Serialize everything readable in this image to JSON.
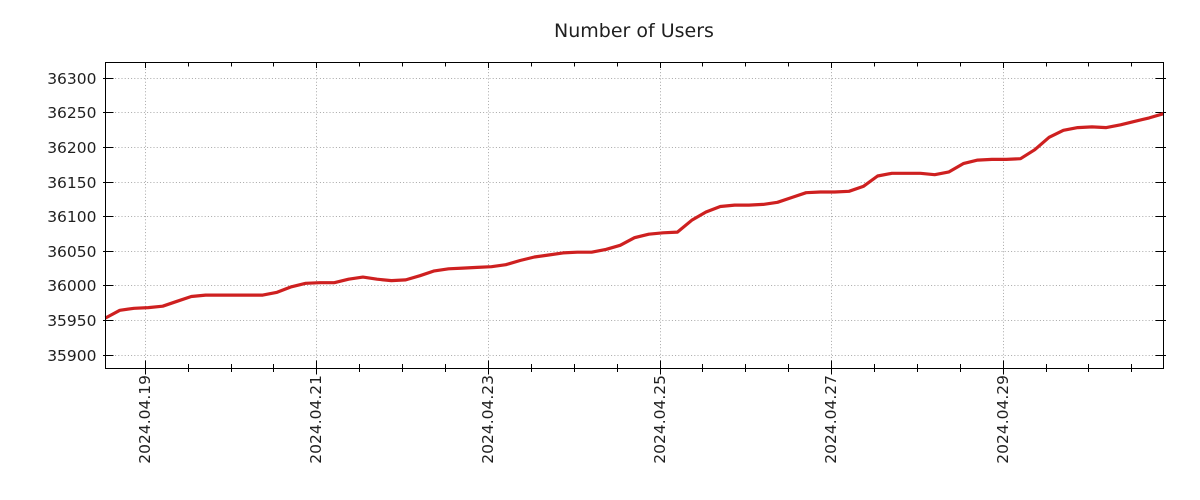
{
  "chart_data": {
    "type": "line",
    "title": "Number of Users",
    "xlabel": "",
    "ylabel": "",
    "legend": "none",
    "grid": {
      "style": "dotted",
      "color": "#a8a8a8"
    },
    "axis_color": "#000000",
    "text_color": "#1f1f1f",
    "background": "#ffffff",
    "series": [
      {
        "name": "Number of Users",
        "color": "#ce2020",
        "line_width": 3.2,
        "x_start": "2024-04-18 13:00",
        "x_end": "2024-04-30 22:00",
        "sample_interval_hours": 4,
        "values": [
          35953,
          35964,
          35967,
          35968,
          35970,
          35977,
          35984,
          35986,
          35986,
          35986,
          35986,
          35986,
          35990,
          35998,
          36003,
          36004,
          36004,
          36009,
          36012,
          36009,
          36007,
          36008,
          36014,
          36021,
          36024,
          36025,
          36026,
          36027,
          36030,
          36036,
          36041,
          36044,
          36047,
          36048,
          36048,
          36052,
          36058,
          36069,
          36074,
          36076,
          36077,
          36094,
          36106,
          36114,
          36116,
          36116,
          36117,
          36120,
          36127,
          36134,
          36135,
          36135,
          36136,
          36143,
          36158,
          36162,
          36162,
          36162,
          36160,
          36164,
          36176,
          36181,
          36182,
          36182,
          36183,
          36196,
          36214,
          36224,
          36228,
          36229,
          36228,
          36232,
          36237,
          36242,
          36248
        ]
      }
    ],
    "x_total_hours": 296,
    "x_major_ticks": [
      {
        "hour": 11,
        "label": "2024.04.19"
      },
      {
        "hour": 59,
        "label": "2024.04.21"
      },
      {
        "hour": 107,
        "label": "2024.04.23"
      },
      {
        "hour": 155,
        "label": "2024.04.25"
      },
      {
        "hour": 203,
        "label": "2024.04.27"
      },
      {
        "hour": 251,
        "label": "2024.04.29"
      }
    ],
    "x_minor_tick_every_hours": 12,
    "x_minor_tick_phase_hour": 11,
    "ylim": [
      35880,
      36322
    ],
    "yticks": [
      35900,
      35950,
      36000,
      36050,
      36100,
      36150,
      36200,
      36250,
      36300
    ]
  }
}
